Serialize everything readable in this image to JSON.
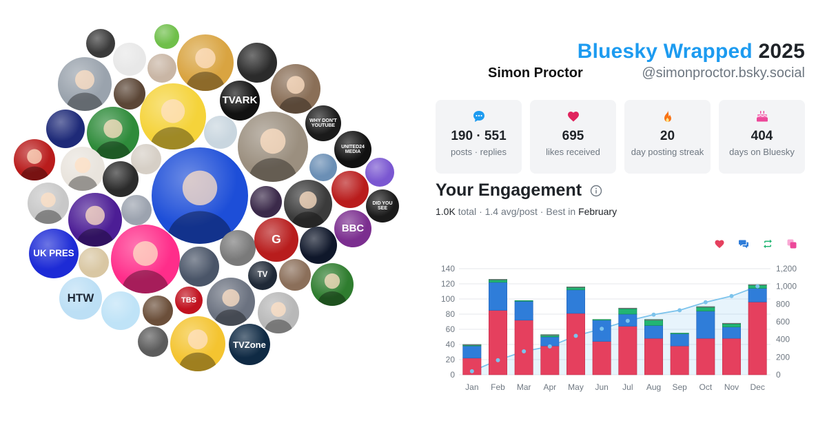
{
  "header": {
    "title_brand": "Bluesky Wrapped",
    "title_year": "2025",
    "display_name": "Simon Proctor",
    "handle": "@simonproctor.bsky.social"
  },
  "stats": [
    {
      "icon": "speech-bubble-icon",
      "value": "190 · 551",
      "label": "posts · replies",
      "color": "#1d9bf0"
    },
    {
      "icon": "heart-icon",
      "value": "695",
      "label": "likes received",
      "color": "#e0245e"
    },
    {
      "icon": "flame-icon",
      "value": "20",
      "label": "day posting streak",
      "color": "#f97316"
    },
    {
      "icon": "cake-icon",
      "value": "404",
      "label": "days on Bluesky",
      "color": "#ec4899"
    }
  ],
  "engagement": {
    "title": "Your Engagement",
    "total": "1.0K",
    "total_suffix": "total",
    "avg": "1.4 avg/post",
    "best_prefix": "Best in",
    "best_month": "February",
    "legend": [
      {
        "icon": "heart-icon",
        "color": "#e5405e"
      },
      {
        "icon": "replies-icon",
        "color": "#2f7dd9"
      },
      {
        "icon": "repost-icon",
        "color": "#22b573"
      },
      {
        "icon": "quote-icon",
        "color": "#ec4899"
      }
    ]
  },
  "avatars": [
    {
      "label": "",
      "color": "#3a3a3a"
    },
    {
      "label": "",
      "color": "#e8e8e8"
    },
    {
      "label": "",
      "color": "#6fbf4a"
    },
    {
      "label": "",
      "color": "#d9a441"
    },
    {
      "label": "",
      "color": "#2b2b2b"
    },
    {
      "label": "",
      "color": "#c9b6a5"
    },
    {
      "label": "",
      "color": "#8a6f57"
    },
    {
      "label": "",
      "color": "#9aa3ad"
    },
    {
      "label": "",
      "color": "#f5d33a"
    },
    {
      "label": "TVARK",
      "color": "#111111"
    },
    {
      "label": "",
      "color": "#5b4636"
    },
    {
      "label": "",
      "color": "#1e2a78"
    },
    {
      "label": "",
      "color": "#2e8b3a"
    },
    {
      "label": "WHY DON'T YOUTUBE",
      "color": "#1a1a1a"
    },
    {
      "label": "",
      "color": "#c9d6df"
    },
    {
      "label": "",
      "color": "#9b8f7f"
    },
    {
      "label": "",
      "color": "#b91c1c"
    },
    {
      "label": "UNITED24 MEDIA",
      "color": "#111111"
    },
    {
      "label": "",
      "color": "#d6cfc6"
    },
    {
      "label": "",
      "color": "#e9e4dd"
    },
    {
      "label": "",
      "color": "#6b8fb5"
    },
    {
      "label": "",
      "color": "#7a57d1"
    },
    {
      "label": "",
      "color": "#1d4ed8"
    },
    {
      "label": "",
      "color": "#2b2b2b"
    },
    {
      "label": "",
      "color": "#3b2a4a"
    },
    {
      "label": "",
      "color": "#3b3b3b"
    },
    {
      "label": "",
      "color": "#b91c1c"
    },
    {
      "label": "DID YOU SEE",
      "color": "#1a1a1a"
    },
    {
      "label": "",
      "color": "#c8c8c8"
    },
    {
      "label": "",
      "color": "#4c1d95"
    },
    {
      "label": "",
      "color": "#9ca3af"
    },
    {
      "label": "BBC",
      "color": "#7b2e8f"
    },
    {
      "label": "UK PRES",
      "color": "#1d2bd6"
    },
    {
      "label": "",
      "color": "#ff2d8a"
    },
    {
      "label": "",
      "color": "#d9c7a3"
    },
    {
      "label": "",
      "color": "#4a5568"
    },
    {
      "label": "",
      "color": "#7a7a7a"
    },
    {
      "label": "G",
      "color": "#b81d1d"
    },
    {
      "label": "",
      "color": "#0f172a"
    },
    {
      "label": "HTW",
      "color": "#bcdff5"
    },
    {
      "label": "",
      "color": "#bfe3f7"
    },
    {
      "label": "",
      "color": "#6b4f3a"
    },
    {
      "label": "TBS",
      "color": "#c1121f"
    },
    {
      "label": "",
      "color": "#6b7280"
    },
    {
      "label": "TV",
      "color": "#1f2937"
    },
    {
      "label": "",
      "color": "#8b6f5a"
    },
    {
      "label": "",
      "color": "#2f7d2f"
    },
    {
      "label": "",
      "color": "#b8b8b8"
    },
    {
      "label": "",
      "color": "#5c5c5c"
    },
    {
      "label": "",
      "color": "#f4c430"
    },
    {
      "label": "TVZone",
      "color": "#0f2a44"
    }
  ],
  "chart_data": {
    "type": "bar",
    "stacked": true,
    "categories": [
      "Jan",
      "Feb",
      "Mar",
      "Apr",
      "May",
      "Jun",
      "Jul",
      "Aug",
      "Sep",
      "Oct",
      "Nov",
      "Dec"
    ],
    "series": [
      {
        "name": "",
        "color": "#e5405e",
        "values": [
          22,
          85,
          72,
          38,
          81,
          44,
          64,
          48,
          38,
          48,
          48,
          96
        ]
      },
      {
        "name": "",
        "color": "#2f7dd9",
        "values": [
          16,
          37,
          25,
          12,
          31,
          28,
          16,
          17,
          16,
          36,
          15,
          18
        ]
      },
      {
        "name": "",
        "color": "#22b573",
        "values": [
          1,
          3,
          1,
          2,
          3,
          1,
          7,
          7,
          1,
          5,
          4,
          4
        ]
      },
      {
        "name": "",
        "color": "#ec4899",
        "values": [
          1,
          1,
          0,
          1,
          1,
          0,
          1,
          1,
          0,
          1,
          1,
          1
        ]
      }
    ],
    "cumulative_line": {
      "name": "",
      "color": "#7cc3ec",
      "values": [
        40,
        165,
        265,
        320,
        440,
        520,
        610,
        680,
        730,
        820,
        890,
        1000
      ]
    },
    "ylim": [
      0,
      140
    ],
    "y_ticks": [
      0,
      20,
      40,
      60,
      80,
      100,
      120,
      140
    ],
    "y2lim": [
      0,
      1200
    ],
    "y2_ticks": [
      "0",
      "200",
      "400",
      "600",
      "800",
      "1,000",
      "1,200"
    ],
    "grid": true
  }
}
